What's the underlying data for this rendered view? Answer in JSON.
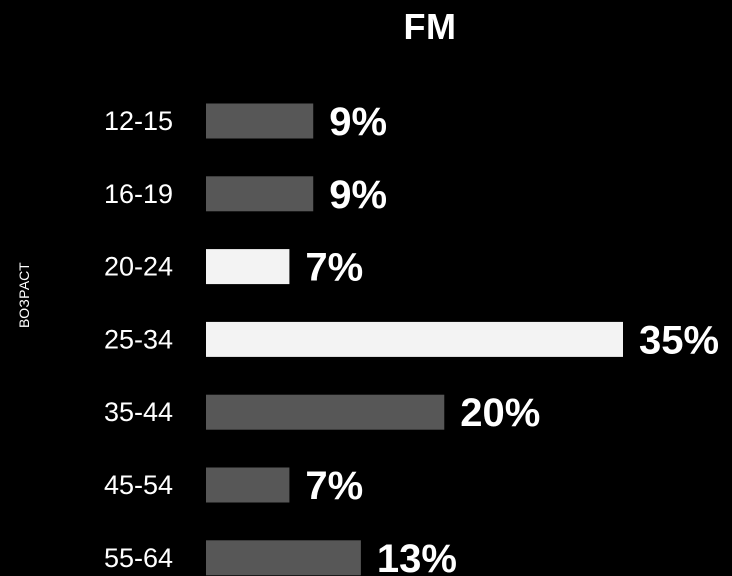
{
  "chart_data": {
    "type": "bar",
    "orientation": "horizontal",
    "title": "FM",
    "xlabel": "",
    "ylabel": "ВОЗРАСТ",
    "categories": [
      "12-15",
      "16-19",
      "20-24",
      "25-34",
      "35-44",
      "45-54",
      "55-64"
    ],
    "values": [
      9,
      9,
      7,
      35,
      20,
      7,
      13
    ],
    "value_labels": [
      "9%",
      "9%",
      "7%",
      "35%",
      "20%",
      "7%",
      "13%"
    ],
    "highlighted_categories": [
      "20-24",
      "25-34"
    ],
    "xlim": [
      0,
      35
    ],
    "grid": false,
    "legend": "none",
    "colors": {
      "background": "#000000",
      "bar_default": "#575757",
      "bar_highlight": "#f3f3f3",
      "text": "#ffffff"
    }
  }
}
